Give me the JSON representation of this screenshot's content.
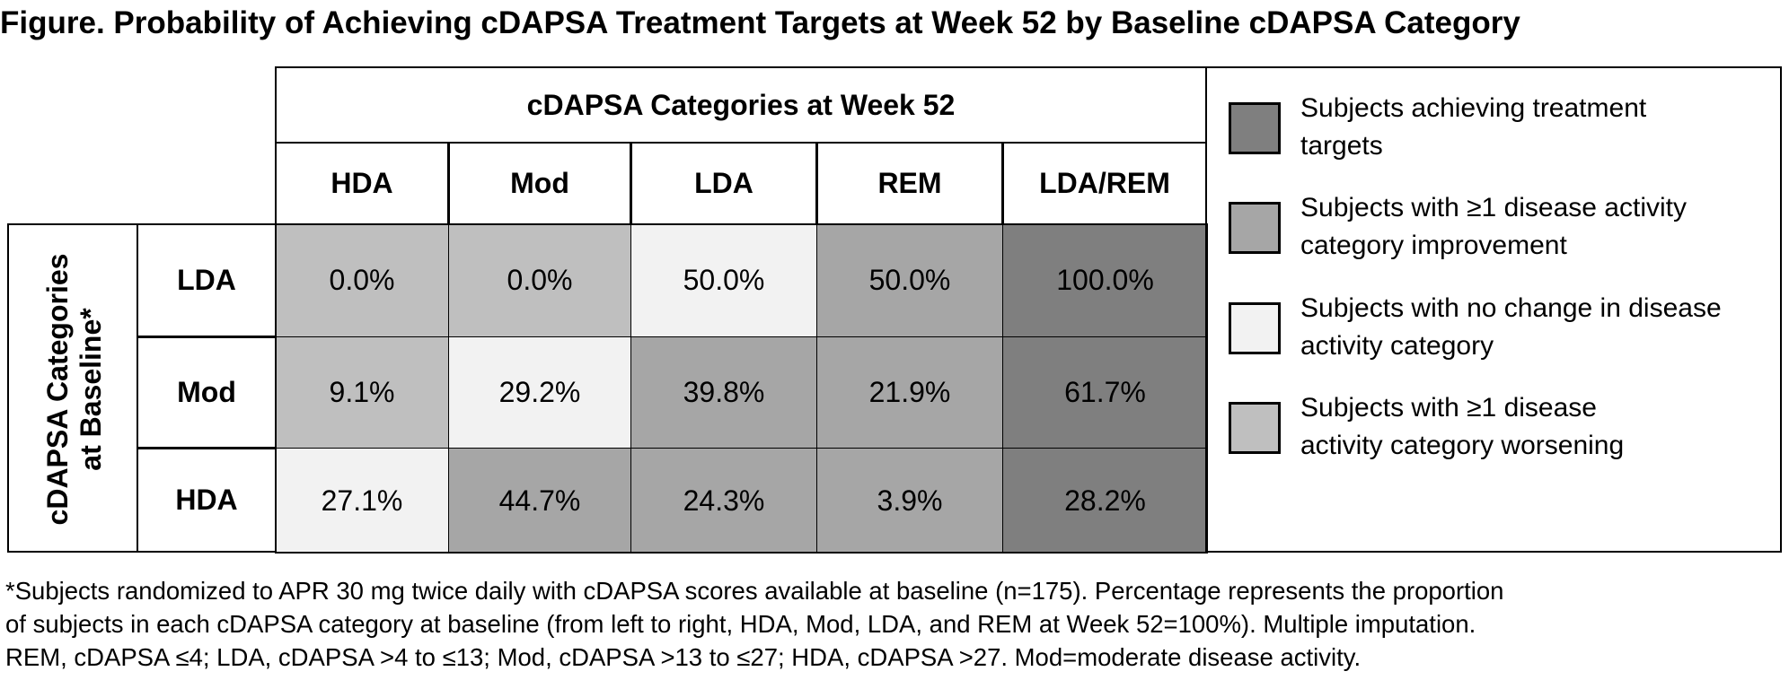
{
  "title": "Figure. Probability of Achieving cDAPSA Treatment Targets at Week 52 by Baseline cDAPSA Category",
  "chart_data": {
    "type": "table",
    "column_group_label": "cDAPSA Categories at Week 52",
    "columns": [
      "HDA",
      "Mod",
      "LDA",
      "REM",
      "LDA/REM"
    ],
    "row_group_label_line1": "cDAPSA Categories",
    "row_group_label_line2": "at Baseline*",
    "rows": [
      {
        "label": "LDA",
        "values": [
          "0.0%",
          "0.0%",
          "50.0%",
          "50.0%",
          "100.0%"
        ],
        "categories": [
          "worsening",
          "worsening",
          "nochange",
          "improvement",
          "target"
        ]
      },
      {
        "label": "Mod",
        "values": [
          "9.1%",
          "29.2%",
          "39.8%",
          "21.9%",
          "61.7%"
        ],
        "categories": [
          "worsening",
          "nochange",
          "improvement",
          "improvement",
          "target"
        ]
      },
      {
        "label": "HDA",
        "values": [
          "27.1%",
          "44.7%",
          "24.3%",
          "3.9%",
          "28.2%"
        ],
        "categories": [
          "nochange",
          "improvement",
          "improvement",
          "improvement",
          "target"
        ]
      }
    ],
    "legend": [
      {
        "key": "target",
        "line1": "Subjects achieving treatment",
        "line2": "targets",
        "color": "#7f7f7f"
      },
      {
        "key": "improvement",
        "line1": "Subjects with ≥1 disease activity",
        "line2": "category improvement",
        "color": "#a6a6a6"
      },
      {
        "key": "nochange",
        "line1": "Subjects with no change in disease",
        "line2": "activity category",
        "color": "#f2f2f2"
      },
      {
        "key": "worsening",
        "line1": "Subjects with ≥1 disease",
        "line2": "activity category worsening",
        "color": "#bfbfbf"
      }
    ]
  },
  "footnote": {
    "line1": "*Subjects randomized to APR 30 mg twice daily with cDAPSA scores available at baseline (n=175). Percentage represents the proportion",
    "line2": "of subjects in each cDAPSA category at baseline (from left to right, HDA, Mod, LDA, and REM at Week 52=100%). Multiple imputation.",
    "line3": "REM, cDAPSA ≤4; LDA, cDAPSA >4 to ≤13; Mod, cDAPSA >13 to ≤27; HDA, cDAPSA >27. Mod=moderate disease activity."
  }
}
